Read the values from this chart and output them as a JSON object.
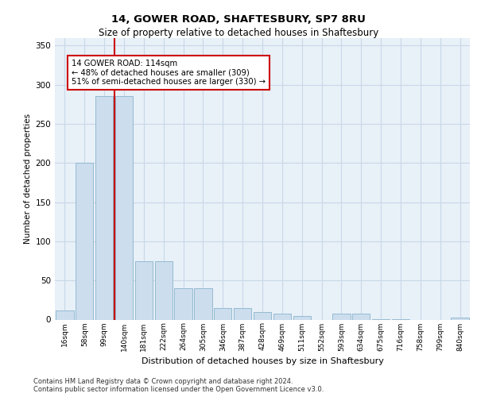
{
  "title1": "14, GOWER ROAD, SHAFTESBURY, SP7 8RU",
  "title2": "Size of property relative to detached houses in Shaftesbury",
  "xlabel": "Distribution of detached houses by size in Shaftesbury",
  "ylabel": "Number of detached properties",
  "footnote1": "Contains HM Land Registry data © Crown copyright and database right 2024.",
  "footnote2": "Contains public sector information licensed under the Open Government Licence v3.0.",
  "bin_labels": [
    "16sqm",
    "58sqm",
    "99sqm",
    "140sqm",
    "181sqm",
    "222sqm",
    "264sqm",
    "305sqm",
    "346sqm",
    "387sqm",
    "428sqm",
    "469sqm",
    "511sqm",
    "552sqm",
    "593sqm",
    "634sqm",
    "675sqm",
    "716sqm",
    "758sqm",
    "799sqm",
    "840sqm"
  ],
  "bar_values": [
    12,
    200,
    285,
    285,
    75,
    75,
    40,
    40,
    15,
    15,
    10,
    8,
    5,
    0,
    8,
    8,
    1,
    1,
    0,
    0,
    3
  ],
  "bar_color": "#ccdded",
  "bar_edge_color": "#8ab4cc",
  "grid_color": "#c8d8e8",
  "background_color": "#e8f0f8",
  "vline_color": "#cc0000",
  "annotation_text": "14 GOWER ROAD: 114sqm\n← 48% of detached houses are smaller (309)\n51% of semi-detached houses are larger (330) →",
  "annotation_box_color": "#cc0000",
  "ylim": [
    0,
    360
  ],
  "yticks": [
    0,
    50,
    100,
    150,
    200,
    250,
    300,
    350
  ]
}
